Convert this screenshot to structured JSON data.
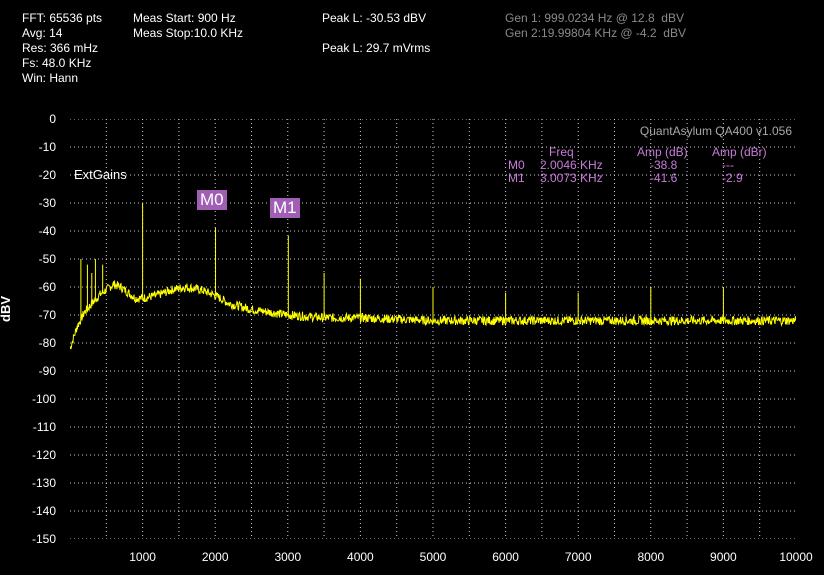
{
  "status": {
    "fft": "FFT: 65536 pts",
    "avg": "Avg: 14",
    "res": "Res: 366 mHz",
    "fs": "Fs: 48.0 KHz",
    "win": "Win: Hann",
    "meas_start": "Meas Start: 900 Hz",
    "meas_stop": "Meas Stop:10.0 KHz",
    "peak_l_dbv": "Peak L: -30.53 dBV",
    "peak_l_mvrms": "Peak L: 29.7 mVrms",
    "gen1": "Gen 1: 999.0234 Hz @ 12.8  dBV",
    "gen2": "Gen 2:19.99804 KHz @ -4.2  dBV"
  },
  "watermark": "QuantAsylum QA400 v1.056",
  "ext_gains": "ExtGains",
  "markers": {
    "headers": {
      "freq": "Freq",
      "amp_db": "Amp (dB)",
      "amp_dbr": "Amp (dBr)"
    },
    "rows": [
      {
        "name": "M0",
        "freq": "2.0046 KHz",
        "amp_db": "-38.8",
        "amp_dbr": "---"
      },
      {
        "name": "M1",
        "freq": "3.0073 KHz",
        "amp_db": "-41.6",
        "amp_dbr": "-2.9"
      }
    ],
    "labels": [
      "M0",
      "M1"
    ]
  },
  "colors": {
    "trace": "#ffff00",
    "grid": "#d0d0d0",
    "marker": "#a05fb5",
    "marker_text": "#c77bd9"
  },
  "chart_data": {
    "type": "line",
    "ylabel": "dBV",
    "xlabel": "",
    "xlim": [
      0,
      10000
    ],
    "ylim": [
      -150,
      0
    ],
    "x_ticks": [
      1000,
      2000,
      3000,
      4000,
      5000,
      6000,
      7000,
      8000,
      9000,
      10000
    ],
    "y_ticks": [
      0,
      -10,
      -20,
      -30,
      -40,
      -50,
      -60,
      -70,
      -80,
      -90,
      -100,
      -110,
      -120,
      -130,
      -140,
      -150
    ],
    "grid": true,
    "series": [
      {
        "x": [
          0,
          100,
          200,
          300,
          400,
          500,
          600,
          700,
          800,
          900,
          1000,
          1200,
          1400,
          1600,
          1800,
          2000,
          2200,
          2500,
          3000,
          3500,
          4000,
          5000,
          6000,
          7000,
          8000,
          9000,
          10000
        ],
        "values": [
          -82,
          -74,
          -69,
          -66,
          -63,
          -61,
          -59,
          -60,
          -62,
          -64,
          -64,
          -63,
          -61,
          -60,
          -61,
          -63,
          -66,
          -68,
          -70,
          -71,
          -71,
          -72,
          -72,
          -72,
          -72,
          -72,
          -72
        ]
      }
    ],
    "spikes": [
      {
        "x": 150,
        "y": -50
      },
      {
        "x": 240,
        "y": -52
      },
      {
        "x": 300,
        "y": -55
      },
      {
        "x": 350,
        "y": -50
      },
      {
        "x": 450,
        "y": -52
      },
      {
        "x": 1000,
        "y": -30
      },
      {
        "x": 2004.6,
        "y": -38.8
      },
      {
        "x": 3007.3,
        "y": -41.6
      },
      {
        "x": 3500,
        "y": -55
      },
      {
        "x": 4000,
        "y": -57
      },
      {
        "x": 5000,
        "y": -60
      },
      {
        "x": 6000,
        "y": -62
      },
      {
        "x": 7000,
        "y": -62
      },
      {
        "x": 8000,
        "y": -60
      },
      {
        "x": 9000,
        "y": -60
      }
    ]
  }
}
